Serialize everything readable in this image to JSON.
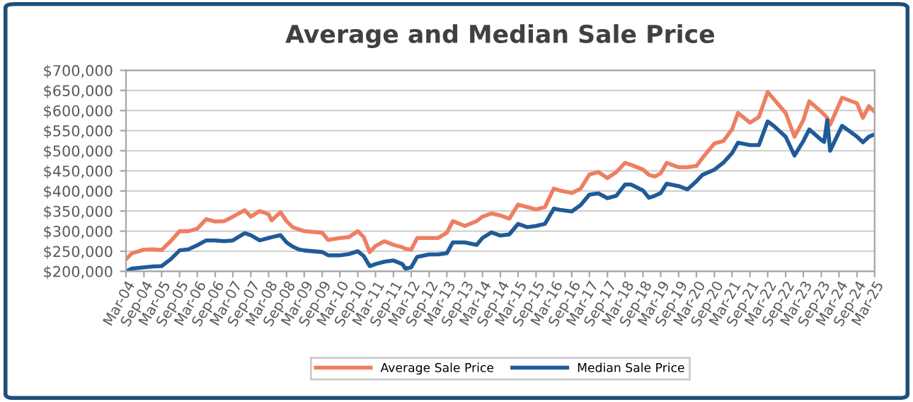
{
  "chart_data": {
    "type": "line",
    "title": "Average and Median Sale Price",
    "x": [
      "2004-03",
      "2004-05",
      "2004-09",
      "2004-12",
      "2005-03",
      "2005-06",
      "2005-09",
      "2005-12",
      "2006-03",
      "2006-06",
      "2006-09",
      "2006-12",
      "2007-03",
      "2007-07",
      "2007-09",
      "2007-12",
      "2008-03",
      "2008-04",
      "2008-07",
      "2008-09",
      "2008-11",
      "2009-01",
      "2009-03",
      "2009-09",
      "2009-11",
      "2010-03",
      "2010-06",
      "2010-09",
      "2010-11",
      "2011-01",
      "2011-03",
      "2011-06",
      "2011-09",
      "2011-12",
      "2012-01",
      "2012-03",
      "2012-05",
      "2012-09",
      "2012-12",
      "2013-03",
      "2013-05",
      "2013-09",
      "2014-01",
      "2014-03",
      "2014-06",
      "2014-09",
      "2014-12",
      "2015-03",
      "2015-06",
      "2015-09",
      "2015-12",
      "2016-03",
      "2016-05",
      "2016-09",
      "2016-12",
      "2017-03",
      "2017-06",
      "2017-09",
      "2017-12",
      "2018-03",
      "2018-05",
      "2018-09",
      "2018-11",
      "2019-01",
      "2019-03",
      "2019-05",
      "2019-09",
      "2019-12",
      "2020-03",
      "2020-05",
      "2020-09",
      "2020-12",
      "2021-03",
      "2021-05",
      "2021-09",
      "2021-12",
      "2022-03",
      "2022-05",
      "2022-09",
      "2022-12",
      "2023-03",
      "2023-05",
      "2023-09",
      "2023-10",
      "2023-11",
      "2023-12",
      "2024-04",
      "2024-09",
      "2024-11",
      "2025-01",
      "2025-03"
    ],
    "series": [
      {
        "name": "Average Sale Price",
        "color": "#ee7f62",
        "values": [
          230000,
          245000,
          254000,
          255000,
          253000,
          275000,
          300000,
          300000,
          306000,
          330000,
          324000,
          325000,
          336000,
          352000,
          336000,
          350000,
          342000,
          327000,
          347000,
          325000,
          310000,
          305000,
          300000,
          296000,
          278000,
          283000,
          285000,
          300000,
          285000,
          248000,
          263000,
          275000,
          266000,
          260000,
          256000,
          254000,
          283000,
          283000,
          283000,
          296000,
          325000,
          313000,
          325000,
          336000,
          344000,
          339000,
          331000,
          366000,
          360000,
          354000,
          360000,
          406000,
          401000,
          395000,
          406000,
          441000,
          447000,
          432000,
          447000,
          470000,
          465000,
          453000,
          440000,
          436000,
          444000,
          470000,
          459000,
          459000,
          462000,
          482000,
          518000,
          524000,
          553000,
          594000,
          570000,
          584000,
          646000,
          629000,
          594000,
          535000,
          576000,
          623000,
          597000,
          590000,
          582000,
          565000,
          632000,
          618000,
          582000,
          611000,
          597000
        ]
      },
      {
        "name": "Median Sale Price",
        "color": "#1f5b98",
        "values": [
          200000,
          207000,
          210000,
          212000,
          213000,
          230000,
          252000,
          255000,
          265000,
          277000,
          277000,
          275000,
          277000,
          295000,
          290000,
          277000,
          283000,
          285000,
          290000,
          272000,
          262000,
          255000,
          252000,
          248000,
          240000,
          240000,
          243000,
          250000,
          238000,
          213000,
          218000,
          224000,
          227000,
          218000,
          207000,
          210000,
          236000,
          242000,
          242000,
          245000,
          272000,
          272000,
          266000,
          283000,
          297000,
          289000,
          292000,
          318000,
          310000,
          313000,
          318000,
          356000,
          353000,
          349000,
          365000,
          391000,
          394000,
          382000,
          388000,
          416000,
          416000,
          401000,
          383000,
          388000,
          395000,
          418000,
          412000,
          404000,
          424000,
          440000,
          453000,
          470000,
          494000,
          520000,
          514000,
          514000,
          573000,
          562000,
          535000,
          488000,
          524000,
          553000,
          527000,
          522000,
          576000,
          500000,
          562000,
          535000,
          521000,
          535000,
          541000
        ]
      }
    ],
    "xlim": [
      "2004-03",
      "2025-03"
    ],
    "xticks": [
      {
        "value": "2004-03",
        "label": "Mar-04"
      },
      {
        "value": "2004-09",
        "label": "Sep-04"
      },
      {
        "value": "2005-03",
        "label": "Mar-05"
      },
      {
        "value": "2005-09",
        "label": "Sep-05"
      },
      {
        "value": "2006-03",
        "label": "Mar-06"
      },
      {
        "value": "2006-09",
        "label": "Sep-06"
      },
      {
        "value": "2007-03",
        "label": "Mar-07"
      },
      {
        "value": "2007-09",
        "label": "Sep-07"
      },
      {
        "value": "2008-03",
        "label": "Mar-08"
      },
      {
        "value": "2008-09",
        "label": "Sep-08"
      },
      {
        "value": "2009-03",
        "label": "Mar-09"
      },
      {
        "value": "2009-09",
        "label": "Sep-09"
      },
      {
        "value": "2010-03",
        "label": "Mar-10"
      },
      {
        "value": "2010-09",
        "label": "Sep-10"
      },
      {
        "value": "2011-03",
        "label": "Mar-11"
      },
      {
        "value": "2011-09",
        "label": "Sep-11"
      },
      {
        "value": "2012-03",
        "label": "Mar-12"
      },
      {
        "value": "2012-09",
        "label": "Sep-12"
      },
      {
        "value": "2013-03",
        "label": "Mar-13"
      },
      {
        "value": "2013-09",
        "label": "Sep-13"
      },
      {
        "value": "2014-03",
        "label": "Mar-14"
      },
      {
        "value": "2014-09",
        "label": "Sep-14"
      },
      {
        "value": "2015-03",
        "label": "Mar-15"
      },
      {
        "value": "2015-09",
        "label": "Sep-15"
      },
      {
        "value": "2016-03",
        "label": "Mar-16"
      },
      {
        "value": "2016-09",
        "label": "Sep-16"
      },
      {
        "value": "2017-03",
        "label": "Mar-17"
      },
      {
        "value": "2017-09",
        "label": "Sep-17"
      },
      {
        "value": "2018-03",
        "label": "Mar-18"
      },
      {
        "value": "2018-09",
        "label": "Sep-18"
      },
      {
        "value": "2019-03",
        "label": "Mar-19"
      },
      {
        "value": "2019-09",
        "label": "Sep-19"
      },
      {
        "value": "2020-03",
        "label": "Mar-20"
      },
      {
        "value": "2020-09",
        "label": "Sep-20"
      },
      {
        "value": "2021-03",
        "label": "Mar-21"
      },
      {
        "value": "2021-09",
        "label": "Sep-21"
      },
      {
        "value": "2022-03",
        "label": "Mar-22"
      },
      {
        "value": "2022-09",
        "label": "Sep-22"
      },
      {
        "value": "2023-03",
        "label": "Mar-23"
      },
      {
        "value": "2023-09",
        "label": "Sep-23"
      },
      {
        "value": "2024-03",
        "label": "Mar-24"
      },
      {
        "value": "2024-09",
        "label": "Sep-24"
      },
      {
        "value": "2025-03",
        "label": "Mar-25"
      }
    ],
    "ylim": [
      200000,
      700000
    ],
    "yticks": [
      {
        "value": 200000,
        "label": "$200,000"
      },
      {
        "value": 250000,
        "label": "$250,000"
      },
      {
        "value": 300000,
        "label": "$300,000"
      },
      {
        "value": 350000,
        "label": "$350,000"
      },
      {
        "value": 400000,
        "label": "$400,000"
      },
      {
        "value": 450000,
        "label": "$450,000"
      },
      {
        "value": 500000,
        "label": "$500,000"
      },
      {
        "value": 550000,
        "label": "$550,000"
      },
      {
        "value": 600000,
        "label": "$600,000"
      },
      {
        "value": 650000,
        "label": "$650,000"
      },
      {
        "value": 700000,
        "label": "$700,000"
      }
    ],
    "grid": "y",
    "legend": "bottom",
    "marker": "none",
    "line_style": "solid"
  }
}
